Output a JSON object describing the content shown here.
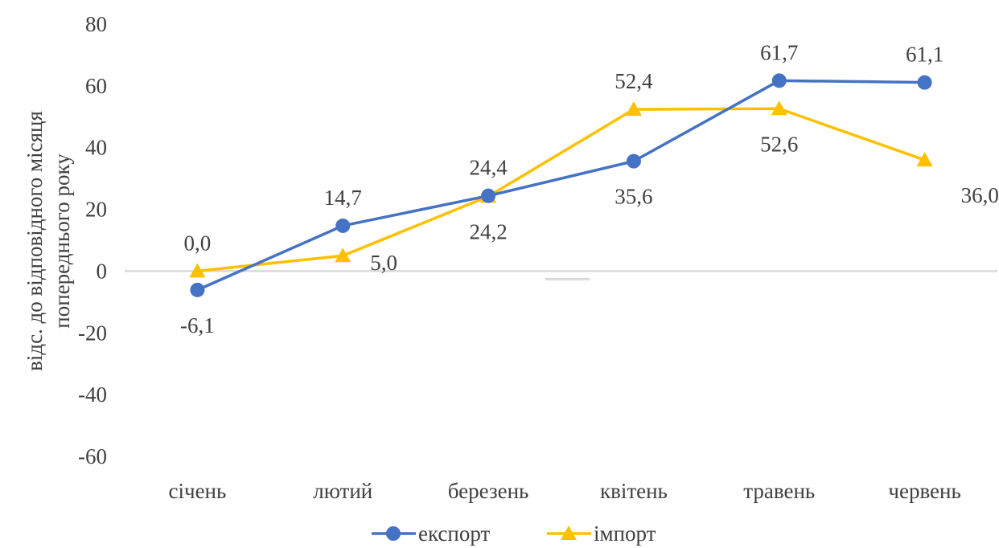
{
  "chart_data": {
    "type": "line",
    "title": "",
    "xlabel": "",
    "ylabel": "відс. до відповідного місяця попереднього року",
    "ylabel_lines": [
      "відс. до відповідного місяця",
      "попереднього року"
    ],
    "categories": [
      "січень",
      "лютий",
      "березень",
      "квітень",
      "травень",
      "червень"
    ],
    "ylim": [
      -60,
      80
    ],
    "yticks": [
      80,
      60,
      40,
      20,
      0,
      -20,
      -40,
      -60
    ],
    "ytick_labels": [
      "80",
      "60",
      "40",
      "20",
      "0",
      "-20",
      "-40",
      "-60"
    ],
    "grid": false,
    "legend_position": "bottom",
    "series": [
      {
        "name": "експорт",
        "color": "#4472C4",
        "marker": "circle",
        "values": [
          -6.1,
          14.7,
          24.4,
          35.6,
          61.7,
          61.1
        ],
        "labels": [
          "-6,1",
          "14,7",
          "24,4",
          "35,6",
          "61,7",
          "61,1"
        ],
        "label_positions": [
          "below",
          "above",
          "above",
          "below",
          "above",
          "above"
        ]
      },
      {
        "name": "імпорт",
        "color": "#FFC000",
        "marker": "triangle",
        "values": [
          0.0,
          5.0,
          24.2,
          52.4,
          52.6,
          36.0
        ],
        "labels": [
          "0,0",
          "5,0",
          "24,2",
          "52,4",
          "52,6",
          "36,0"
        ],
        "label_positions": [
          "above",
          "right",
          "below",
          "above",
          "below",
          "below-right"
        ]
      }
    ]
  }
}
